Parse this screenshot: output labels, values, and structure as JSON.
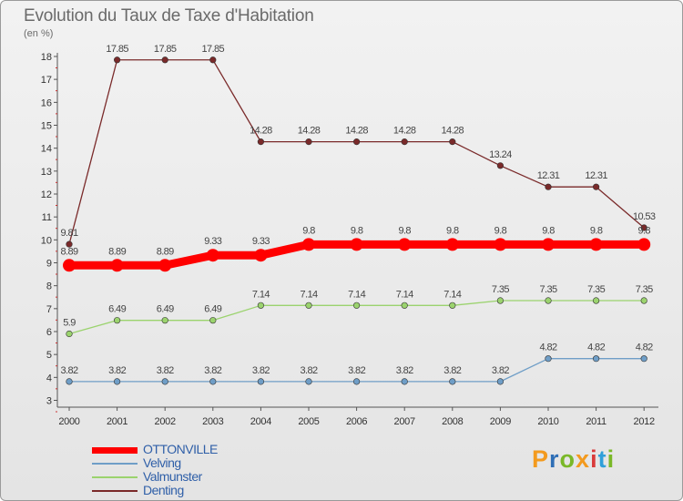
{
  "title": "Evolution du Taux de Taxe d'Habitation",
  "subtitle": "(en %)",
  "logo": {
    "letters": [
      "P",
      "r",
      "o",
      "x",
      "i",
      "t",
      "i"
    ],
    "colors": [
      "#f39a1e",
      "#2f6fb6",
      "#7ab828",
      "#f39a1e",
      "#d93b3b",
      "#2f9fd9",
      "#7ab828"
    ]
  },
  "chart_data": {
    "type": "line",
    "title": "Evolution du Taux de Taxe d'Habitation",
    "ylabel": "(en %)",
    "xlabel": "",
    "ylim": [
      3,
      18
    ],
    "y_ticks": [
      "3",
      "4",
      "5",
      "6",
      "7",
      "8",
      "9",
      "10",
      "11",
      "12",
      "13",
      "14",
      "15",
      "16",
      "17",
      "18"
    ],
    "x": [
      "2000",
      "2001",
      "2002",
      "2003",
      "2004",
      "2005",
      "2006",
      "2007",
      "2008",
      "2009",
      "2010",
      "2011",
      "2012"
    ],
    "grid": false,
    "legend_position": "bottom-left",
    "series": [
      {
        "name": "OTTONVILLE",
        "color": "#ff0000",
        "labels": [
          "8.89",
          "8.89",
          "8.89",
          "9.33",
          "9.33",
          "9.8",
          "9.8",
          "9.8",
          "9.8",
          "9.8",
          "9.8",
          "9.8",
          "9.8"
        ],
        "values": [
          8.89,
          8.89,
          8.89,
          9.33,
          9.33,
          9.8,
          9.8,
          9.8,
          9.8,
          9.8,
          9.8,
          9.8,
          9.8
        ]
      },
      {
        "name": "Velving",
        "color": "#6f9ec7",
        "labels": [
          "3.82",
          "3.82",
          "3.82",
          "3.82",
          "3.82",
          "3.82",
          "3.82",
          "3.82",
          "3.82",
          "3.82",
          "4.82",
          "4.82",
          "4.82"
        ],
        "values": [
          3.82,
          3.82,
          3.82,
          3.82,
          3.82,
          3.82,
          3.82,
          3.82,
          3.82,
          3.82,
          4.82,
          4.82,
          4.82
        ]
      },
      {
        "name": "Valmunster",
        "color": "#9bd36e",
        "labels": [
          "5.9",
          "6.49",
          "6.49",
          "6.49",
          "7.14",
          "7.14",
          "7.14",
          "7.14",
          "7.14",
          "7.35",
          "7.35",
          "7.35",
          "7.35"
        ],
        "values": [
          5.9,
          6.49,
          6.49,
          6.49,
          7.14,
          7.14,
          7.14,
          7.14,
          7.14,
          7.35,
          7.35,
          7.35,
          7.35
        ]
      },
      {
        "name": "Denting",
        "color": "#7a2a2a",
        "labels": [
          "9.81",
          "17.85",
          "17.85",
          "17.85",
          "14.28",
          "14.28",
          "14.28",
          "14.28",
          "14.28",
          "13.24",
          "12.31",
          "12.31",
          "10.53"
        ],
        "values": [
          9.81,
          17.85,
          17.85,
          17.85,
          14.28,
          14.28,
          14.28,
          14.28,
          14.28,
          13.24,
          12.31,
          12.31,
          10.53
        ]
      }
    ]
  }
}
